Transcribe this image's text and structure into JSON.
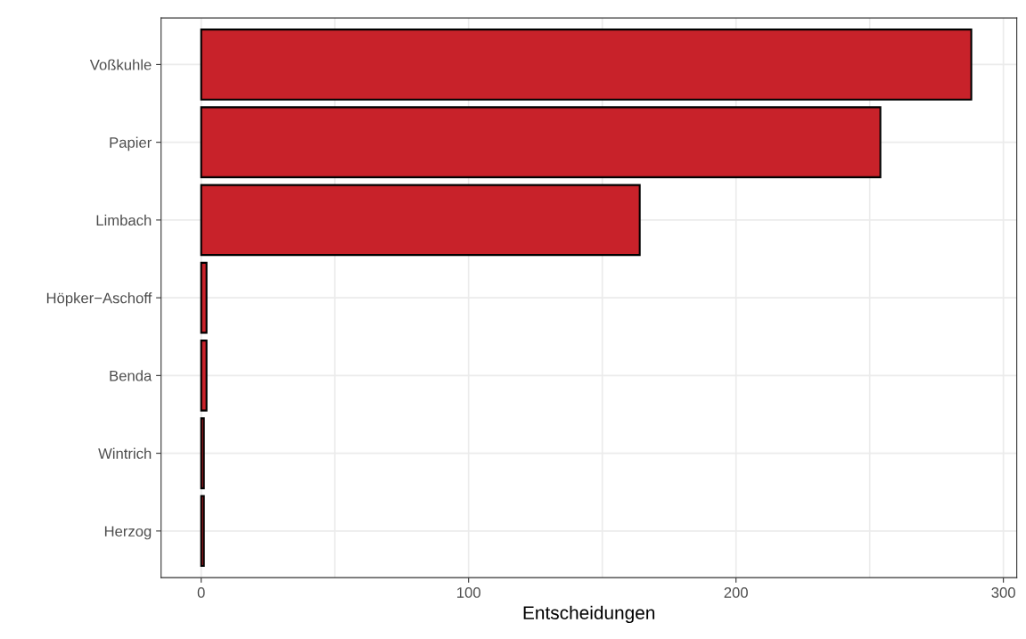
{
  "chart_data": {
    "type": "bar",
    "orientation": "horizontal",
    "xlabel": "Entscheidungen",
    "categories": [
      "Voßkuhle",
      "Papier",
      "Limbach",
      "Höpker−Aschoff",
      "Benda",
      "Wintrich",
      "Herzog"
    ],
    "values": [
      288,
      254,
      164,
      2,
      2,
      1,
      1
    ],
    "color": "#c8222a",
    "xlim": [
      -15,
      305
    ],
    "xticks": [
      0,
      {
        "value": 50,
        "label": null
      },
      100,
      {
        "value": 150,
        "label": null
      },
      200,
      {
        "value": 250,
        "label": null
      },
      300
    ],
    "grid": true
  }
}
